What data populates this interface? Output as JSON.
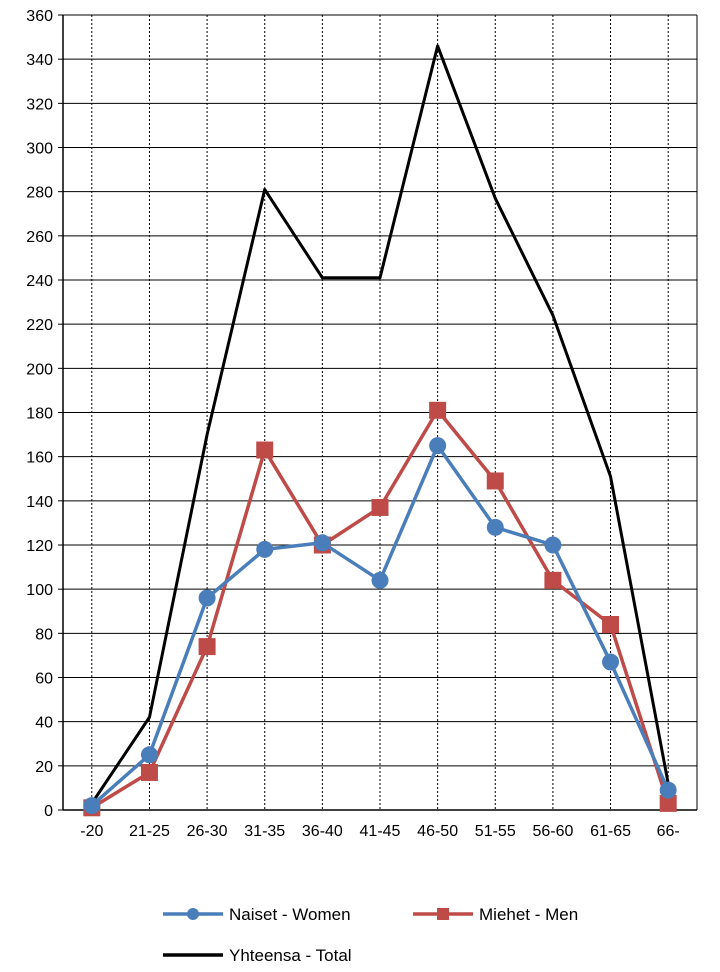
{
  "chart_data": {
    "type": "line",
    "categories": [
      "-20",
      "21-25",
      "26-30",
      "31-35",
      "36-40",
      "41-45",
      "46-50",
      "51-55",
      "56-60",
      "61-65",
      "66-"
    ],
    "ylim": [
      0,
      360
    ],
    "yticks": [
      0,
      20,
      40,
      60,
      80,
      100,
      120,
      140,
      160,
      180,
      200,
      220,
      240,
      260,
      280,
      300,
      320,
      340,
      360
    ],
    "grid": true,
    "legend_position": "bottom",
    "series": [
      {
        "name": "Naiset - Women",
        "color": "#4a7ebb",
        "marker": "circle",
        "values": [
          2,
          25,
          96,
          118,
          121,
          104,
          165,
          128,
          120,
          67,
          9
        ]
      },
      {
        "name": "Miehet - Men",
        "color": "#be4b48",
        "marker": "square",
        "values": [
          1,
          17,
          74,
          163,
          120,
          137,
          181,
          149,
          104,
          84,
          3
        ]
      },
      {
        "name": "Yhteensa - Total",
        "color": "#000000",
        "marker": "none",
        "values": [
          3,
          42,
          170,
          281,
          241,
          241,
          346,
          277,
          224,
          151,
          12
        ]
      }
    ]
  }
}
